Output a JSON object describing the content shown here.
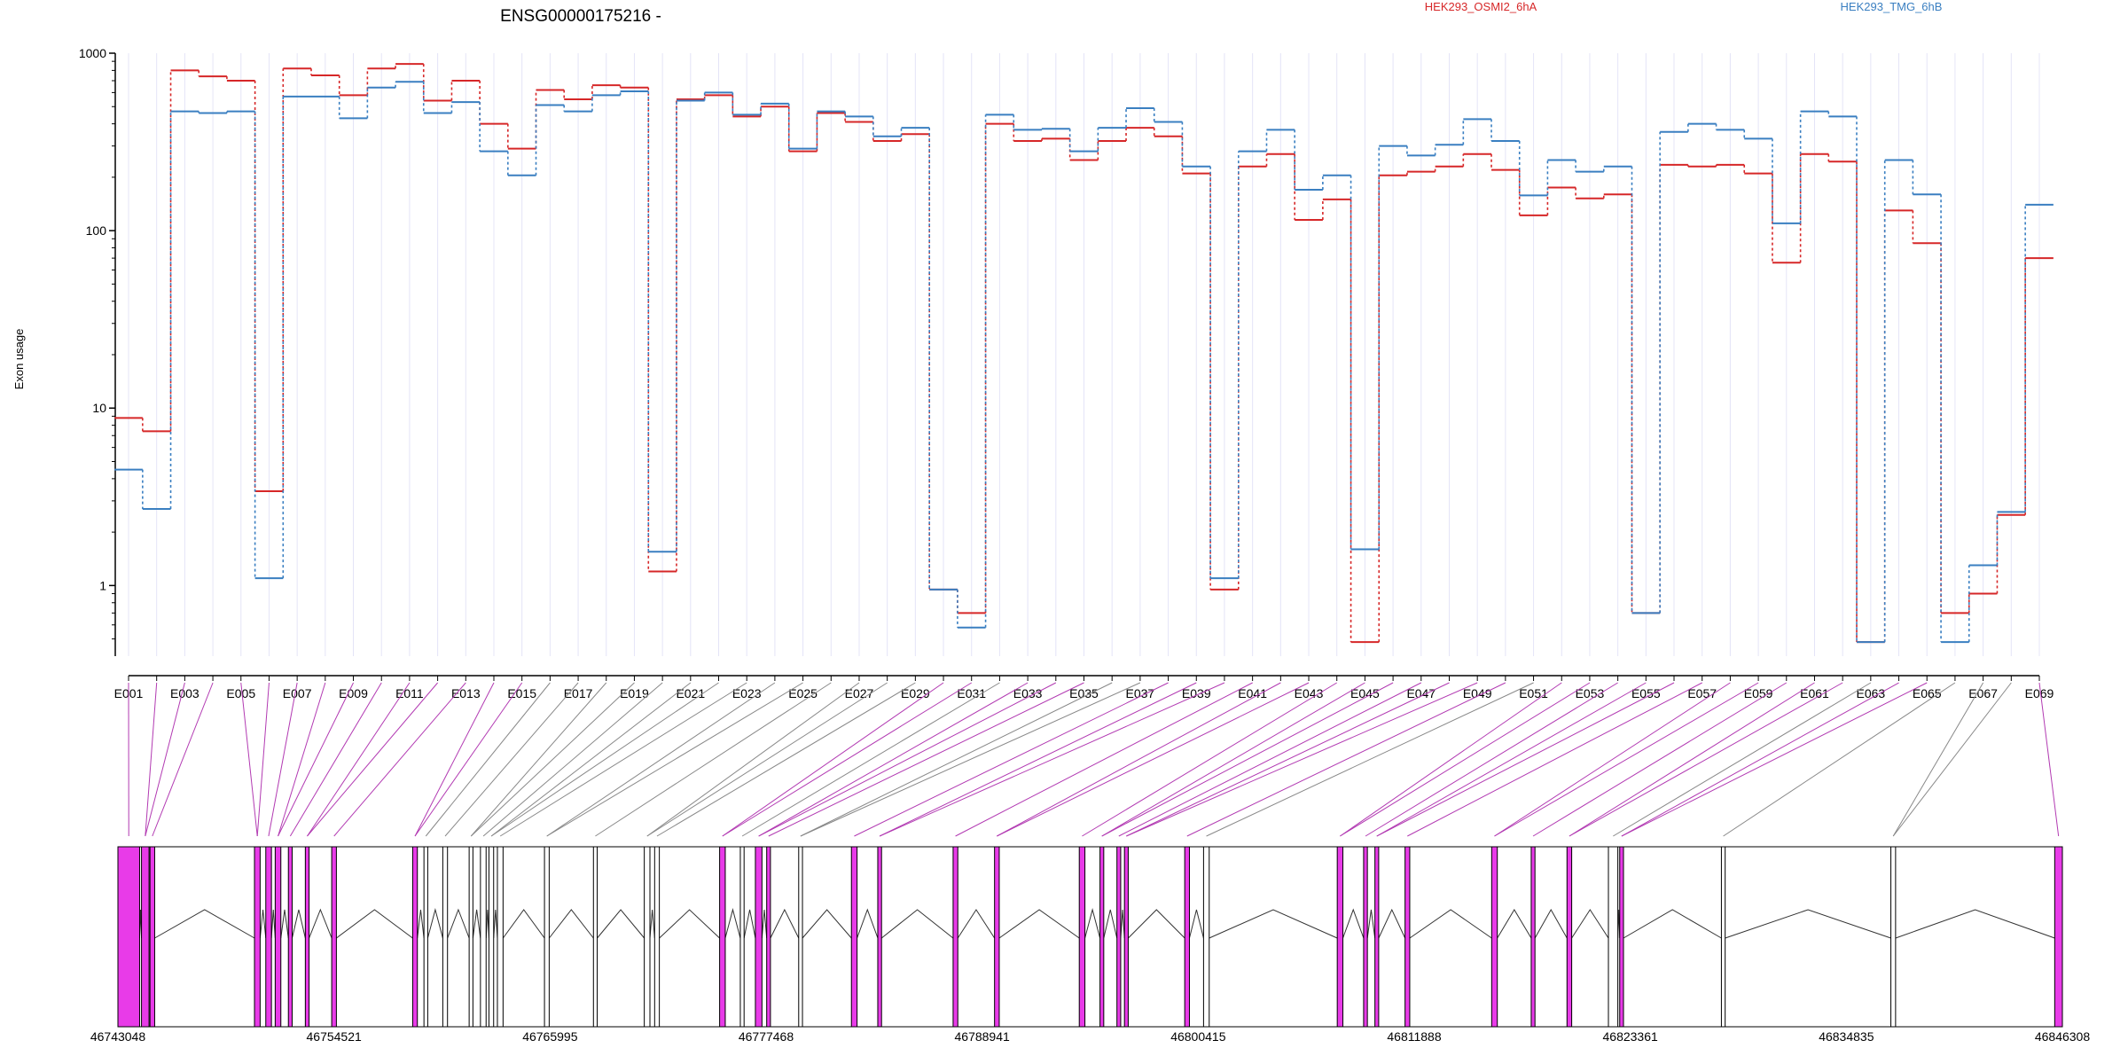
{
  "chart_data": {
    "type": "line",
    "title": "ENSG00000175216 -",
    "ylabel": "Exon usage",
    "xlabel": "",
    "yscale": "log",
    "ylim": [
      0.4,
      1000
    ],
    "yticks": [
      1,
      10,
      100,
      1000
    ],
    "ytick_labels": [
      "1",
      "10",
      "100",
      "1000"
    ],
    "legend_placement": "top",
    "x_tick_labels": [
      "E001",
      "E003",
      "E005",
      "E007",
      "E009",
      "E011",
      "E013",
      "E015",
      "E017",
      "E019",
      "E021",
      "E023",
      "E025",
      "E027",
      "E029",
      "E031",
      "E033",
      "E035",
      "E037",
      "E039",
      "E041",
      "E043",
      "E045",
      "E047",
      "E049",
      "E051",
      "E053",
      "E055",
      "E057",
      "E059",
      "E061",
      "E063",
      "E065",
      "E067",
      "E069"
    ],
    "exons": [
      "E001",
      "E002",
      "E003",
      "E004",
      "E005",
      "E006",
      "E007",
      "E008",
      "E009",
      "E010",
      "E011",
      "E012",
      "E013",
      "E014",
      "E015",
      "E016",
      "E017",
      "E018",
      "E019",
      "E020",
      "E021",
      "E022",
      "E023",
      "E024",
      "E025",
      "E026",
      "E027",
      "E028",
      "E029",
      "E030",
      "E031",
      "E032",
      "E033",
      "E034",
      "E035",
      "E036",
      "E037",
      "E038",
      "E039",
      "E040",
      "E041",
      "E042",
      "E043",
      "E044",
      "E045",
      "E046",
      "E047",
      "E048",
      "E049",
      "E050",
      "E051",
      "E052",
      "E053",
      "E054",
      "E055",
      "E056",
      "E057",
      "E058",
      "E059",
      "E060",
      "E061",
      "E062",
      "E063",
      "E064",
      "E065",
      "E066",
      "E067",
      "E068",
      "E069"
    ],
    "series": [
      {
        "name": "HEK293_OSMI2_6hA",
        "color": "#d62728",
        "values": [
          8.8,
          7.4,
          800,
          740,
          700,
          3.4,
          820,
          750,
          580,
          820,
          870,
          540,
          700,
          400,
          290,
          620,
          550,
          660,
          640,
          1.2,
          550,
          580,
          440,
          500,
          280,
          460,
          410,
          320,
          350,
          0.95,
          0.7,
          400,
          320,
          330,
          250,
          320,
          380,
          340,
          210,
          0.95,
          230,
          270,
          115,
          150,
          0.48,
          205,
          215,
          230,
          270,
          220,
          122,
          175,
          152,
          160,
          0.7,
          235,
          230,
          235,
          210,
          66,
          270,
          245,
          0.48,
          130,
          85,
          0.7,
          0.9,
          2.5,
          70
        ]
      },
      {
        "name": "HEK293_TMG_6hB",
        "color": "#3a7fc1",
        "values": [
          4.5,
          2.7,
          470,
          460,
          470,
          1.1,
          570,
          570,
          430,
          640,
          690,
          460,
          530,
          280,
          205,
          510,
          470,
          580,
          610,
          1.55,
          540,
          600,
          450,
          520,
          290,
          470,
          440,
          340,
          380,
          0.95,
          0.58,
          450,
          370,
          375,
          280,
          380,
          490,
          410,
          230,
          1.1,
          280,
          370,
          170,
          205,
          1.6,
          300,
          265,
          305,
          425,
          320,
          158,
          250,
          215,
          230,
          0.7,
          360,
          400,
          370,
          330,
          110,
          470,
          440,
          0.48,
          250,
          160,
          0.48,
          1.3,
          2.6,
          140
        ]
      }
    ],
    "genomic_axis": {
      "start": 46743048,
      "end": 46846308,
      "tick_values": [
        46743048,
        46754521,
        46765995,
        46777468,
        46788941,
        46800415,
        46811888,
        46823361,
        46834835,
        46846308
      ],
      "tick_labels": [
        "46743048",
        "46754521",
        "46765995",
        "46777468",
        "46788941",
        "46800415",
        "46811888",
        "46823361",
        "46834835",
        "46846308"
      ]
    },
    "gene_model": {
      "exons": [
        {
          "start": 46743048,
          "end": 46744200,
          "color": "#e83be8"
        },
        {
          "start": 46744300,
          "end": 46744700,
          "color": "#e83be8"
        },
        {
          "start": 46744750,
          "end": 46745000,
          "color": "#e83be8"
        },
        {
          "start": 46750300,
          "end": 46750600,
          "color": "#e83be8"
        },
        {
          "start": 46750900,
          "end": 46751200,
          "color": "#e83be8"
        },
        {
          "start": 46751400,
          "end": 46751700,
          "color": "#e83be8"
        },
        {
          "start": 46752100,
          "end": 46752300,
          "color": "#e83be8"
        },
        {
          "start": 46753000,
          "end": 46753200,
          "color": "#e83be8"
        },
        {
          "start": 46754400,
          "end": 46754650,
          "color": "#e83be8"
        },
        {
          "start": 46758700,
          "end": 46758950,
          "color": "#e83be8"
        },
        {
          "start": 46759300,
          "end": 46759500,
          "color": "#ffffff"
        },
        {
          "start": 46760300,
          "end": 46760550,
          "color": "#ffffff"
        },
        {
          "start": 46761700,
          "end": 46761900,
          "color": "#ffffff"
        },
        {
          "start": 46762300,
          "end": 46762600,
          "color": "#ffffff"
        },
        {
          "start": 46762750,
          "end": 46763000,
          "color": "#ffffff"
        },
        {
          "start": 46763200,
          "end": 46763500,
          "color": "#ffffff"
        },
        {
          "start": 46765700,
          "end": 46765950,
          "color": "#ffffff"
        },
        {
          "start": 46768300,
          "end": 46768500,
          "color": "#ffffff"
        },
        {
          "start": 46771000,
          "end": 46771300,
          "color": "#ffffff"
        },
        {
          "start": 46771550,
          "end": 46771800,
          "color": "#ffffff"
        },
        {
          "start": 46775000,
          "end": 46775300,
          "color": "#e83be8"
        },
        {
          "start": 46776100,
          "end": 46776300,
          "color": "#ffffff"
        },
        {
          "start": 46776900,
          "end": 46777250,
          "color": "#e83be8"
        },
        {
          "start": 46777500,
          "end": 46777700,
          "color": "#e83be8"
        },
        {
          "start": 46779200,
          "end": 46779400,
          "color": "#ffffff"
        },
        {
          "start": 46782000,
          "end": 46782300,
          "color": "#e83be8"
        },
        {
          "start": 46783400,
          "end": 46783600,
          "color": "#e83be8"
        },
        {
          "start": 46787400,
          "end": 46787650,
          "color": "#e83be8"
        },
        {
          "start": 46789600,
          "end": 46789850,
          "color": "#e83be8"
        },
        {
          "start": 46794100,
          "end": 46794400,
          "color": "#e83be8"
        },
        {
          "start": 46795200,
          "end": 46795400,
          "color": "#e83be8"
        },
        {
          "start": 46796100,
          "end": 46796300,
          "color": "#e83be8"
        },
        {
          "start": 46796500,
          "end": 46796700,
          "color": "#e83be8"
        },
        {
          "start": 46799700,
          "end": 46799950,
          "color": "#e83be8"
        },
        {
          "start": 46800700,
          "end": 46801000,
          "color": "#ffffff"
        },
        {
          "start": 46807800,
          "end": 46808100,
          "color": "#e83be8"
        },
        {
          "start": 46809200,
          "end": 46809400,
          "color": "#e83be8"
        },
        {
          "start": 46809800,
          "end": 46810000,
          "color": "#e83be8"
        },
        {
          "start": 46811400,
          "end": 46811650,
          "color": "#e83be8"
        },
        {
          "start": 46816000,
          "end": 46816300,
          "color": "#e83be8"
        },
        {
          "start": 46818100,
          "end": 46818300,
          "color": "#e83be8"
        },
        {
          "start": 46820000,
          "end": 46820250,
          "color": "#e83be8"
        },
        {
          "start": 46822200,
          "end": 46822700,
          "color": "#ffffff"
        },
        {
          "start": 46822800,
          "end": 46823000,
          "color": "#e83be8"
        },
        {
          "start": 46828200,
          "end": 46828400,
          "color": "#ffffff"
        },
        {
          "start": 46837200,
          "end": 46837450,
          "color": "#ffffff"
        },
        {
          "start": 46845900,
          "end": 46846308,
          "color": "#e83be8"
        }
      ]
    }
  }
}
